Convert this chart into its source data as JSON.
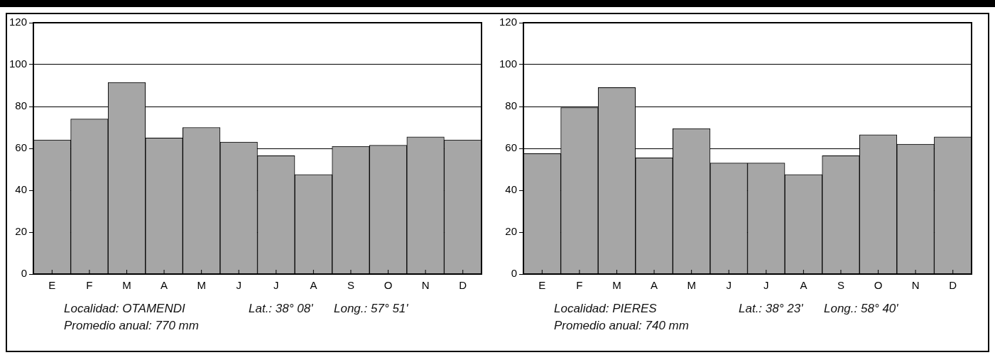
{
  "chart_data": [
    {
      "type": "bar",
      "categories": [
        "E",
        "F",
        "M",
        "A",
        "M",
        "J",
        "J",
        "A",
        "S",
        "O",
        "N",
        "D"
      ],
      "values": [
        64,
        74,
        91.5,
        65,
        70,
        63,
        56.5,
        47.5,
        61,
        61.5,
        65.5,
        64
      ],
      "color": "#a6a6a6",
      "ylim": [
        0,
        120
      ],
      "yticks": [
        0,
        20,
        40,
        60,
        80,
        100,
        120
      ],
      "grid": "y",
      "legend": false,
      "annotations": [
        "Localidad: OTAMENDI",
        "Lat.: 38° 08'",
        "Long.: 57° 51'",
        "Promedio anual: 770 mm"
      ]
    },
    {
      "type": "bar",
      "categories": [
        "E",
        "F",
        "M",
        "A",
        "M",
        "J",
        "J",
        "A",
        "S",
        "O",
        "N",
        "D"
      ],
      "values": [
        57.5,
        79.5,
        89,
        55.5,
        69.5,
        53,
        53,
        47.5,
        56.5,
        66.5,
        62,
        65.5
      ],
      "color": "#a6a6a6",
      "ylim": [
        0,
        120
      ],
      "yticks": [
        0,
        20,
        40,
        60,
        80,
        100,
        120
      ],
      "grid": "y",
      "legend": false,
      "annotations": [
        "Localidad: PIERES",
        "Lat.: 38° 23'",
        "Long.: 58° 40'",
        "Promedio anual: 740 mm"
      ]
    }
  ]
}
